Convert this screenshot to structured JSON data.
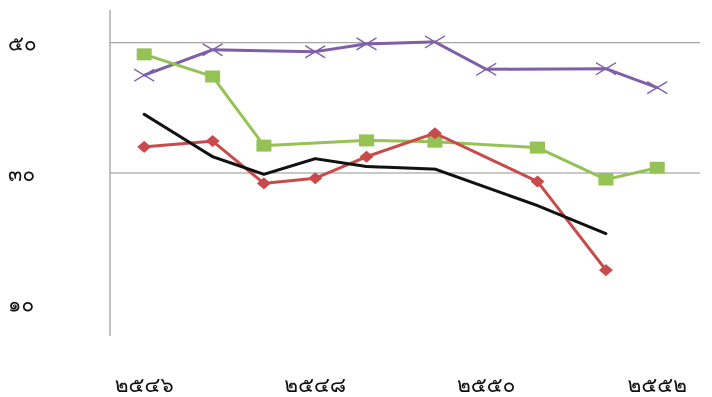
{
  "chart_data": {
    "type": "line",
    "title": "",
    "xlabel": "",
    "ylabel": "",
    "x": [
      2546,
      2546.8,
      2547.4,
      2548,
      2548.6,
      2549.4,
      2550,
      2550.6,
      2551.4,
      2552
    ],
    "x_tick_values": [
      2546,
      2548,
      2550,
      2552
    ],
    "x_tick_labels": [
      "๒๕๔๖",
      "๒๕๔๘",
      "๒๕๕๐",
      "๒๕๕๒"
    ],
    "xlim": [
      2545.6,
      2552.5
    ],
    "ylim": [
      5,
      55
    ],
    "y_ticks": [
      10,
      30,
      50
    ],
    "y_tick_labels": [
      "๑๐",
      "๓๐",
      "๕๐"
    ],
    "gridlines_y": [
      30,
      50
    ],
    "legend": "none",
    "series": [
      {
        "color": "#7f5fa8",
        "marker": "x",
        "x": [
          2546,
          2546.8,
          2547.4,
          2548,
          2548.6,
          2549.4,
          2550,
          2550.6,
          2551.4,
          2552
        ],
        "values": [
          45.0,
          48.9,
          null,
          48.6,
          49.8,
          50.1,
          45.9,
          null,
          46.0,
          43.1
        ]
      },
      {
        "color": "#94c255",
        "marker": "square",
        "x": [
          2546,
          2546.8,
          2547.4,
          2548,
          2548.6,
          2549.4,
          2550,
          2550.6,
          2551.4,
          2552
        ],
        "values": [
          48.2,
          44.8,
          34.2,
          null,
          35.0,
          34.8,
          null,
          33.9,
          29.0,
          30.8
        ]
      },
      {
        "color": "#c84a4a",
        "marker": "diamond",
        "x": [
          2546,
          2546.8,
          2547.4,
          2548,
          2548.6,
          2549.4,
          2550,
          2550.6,
          2551.4,
          2552
        ],
        "values": [
          34.0,
          34.9,
          28.4,
          29.2,
          32.5,
          36.1,
          null,
          28.7,
          15.1,
          null
        ]
      },
      {
        "color": "#111111",
        "marker": "none",
        "x": [
          2546,
          2546.8,
          2547.4,
          2548,
          2548.6,
          2549.4,
          2550,
          2550.6,
          2551.4,
          2552
        ],
        "values": [
          39.0,
          32.5,
          29.8,
          32.2,
          31.0,
          30.6,
          null,
          25.0,
          20.7,
          null
        ]
      }
    ]
  }
}
